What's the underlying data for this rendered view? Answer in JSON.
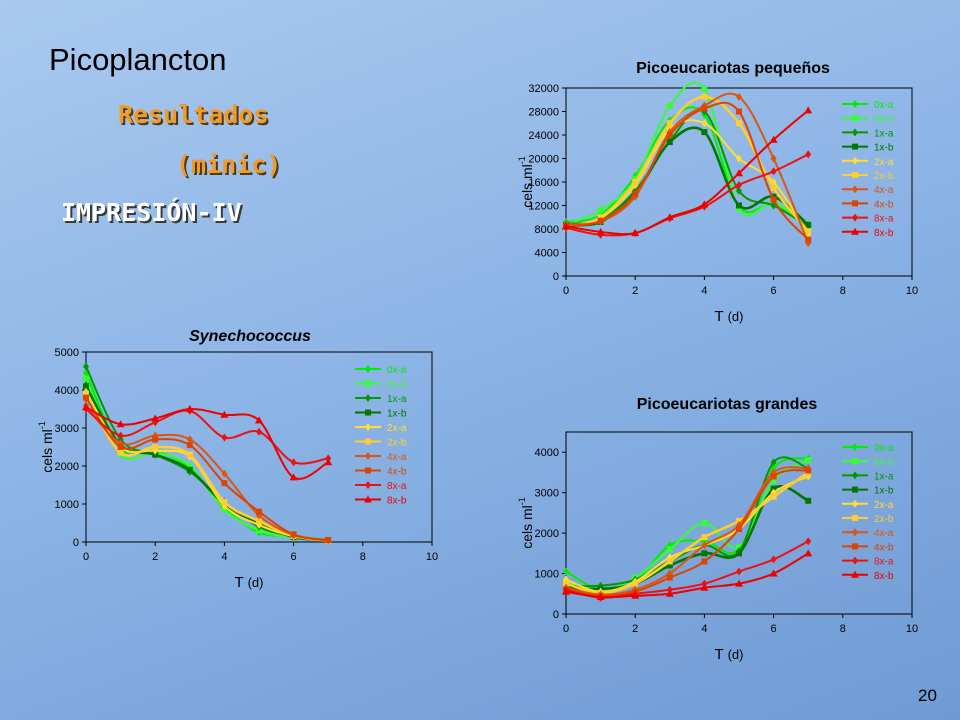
{
  "slide": {
    "title": "Picoplancton",
    "subtitle1": "Resultados",
    "subtitle2": "(minic)",
    "subtitle3": "IMPRESIÓN-IV",
    "page_number": "20"
  },
  "legend_labels": [
    "0x-a",
    "0x-b",
    "1x-a",
    "1x-b",
    "2x-a",
    "2x-b",
    "4x-a",
    "4x-b",
    "8x-a",
    "8x-b"
  ],
  "series_colors": [
    "#00ee00",
    "#33ff33",
    "#009900",
    "#007700",
    "#ffdd33",
    "#ffcc33",
    "#dd5511",
    "#dd4400",
    "#ee1111",
    "#ee0000"
  ],
  "chart_data": [
    {
      "type": "line",
      "title": "Picoeucariotas pequeños",
      "ylabel_main": "cels ml",
      "ylabel_sup": "-1",
      "xlabel_main": "T",
      "xlabel_unit": "(d)",
      "xlim": [
        0,
        10
      ],
      "xticks": [
        "0",
        "2",
        "4",
        "6",
        "8",
        "10"
      ],
      "ylim": [
        0,
        32000
      ],
      "yticks": [
        "0",
        "4000",
        "8000",
        "12000",
        "16000",
        "20000",
        "24000",
        "28000",
        "32000"
      ],
      "x": [
        0,
        1,
        2,
        3,
        4,
        5,
        6,
        7
      ],
      "series": [
        {
          "name": "0x-a",
          "values": [
            9200,
            10400,
            17000,
            26500,
            27500,
            11800,
            12200,
            8800
          ]
        },
        {
          "name": "0x-b",
          "values": [
            8800,
            11200,
            16500,
            29000,
            31800,
            11500,
            12400,
            8600
          ]
        },
        {
          "name": "1x-a",
          "values": [
            8900,
            9600,
            14500,
            23000,
            28000,
            14500,
            12000,
            8500
          ]
        },
        {
          "name": "1x-b",
          "values": [
            8700,
            9200,
            14000,
            22800,
            24500,
            12000,
            13500,
            8700
          ]
        },
        {
          "name": "2x-a",
          "values": [
            8600,
            9800,
            15500,
            25000,
            26000,
            20000,
            16000,
            7000
          ]
        },
        {
          "name": "2x-b",
          "values": [
            8300,
            10000,
            16000,
            26000,
            30500,
            26000,
            15000,
            7600
          ]
        },
        {
          "name": "4x-a",
          "values": [
            8800,
            9300,
            13500,
            24500,
            29000,
            30500,
            20000,
            5600
          ]
        },
        {
          "name": "4x-b",
          "values": [
            8400,
            9400,
            14000,
            24000,
            28500,
            28000,
            13000,
            6200
          ]
        },
        {
          "name": "8x-a",
          "values": [
            8200,
            7000,
            7300,
            9800,
            11800,
            15500,
            17800,
            20700
          ]
        },
        {
          "name": "8x-b",
          "values": [
            8500,
            7500,
            7300,
            10000,
            12200,
            17500,
            23200,
            28200
          ]
        }
      ]
    },
    {
      "type": "line",
      "title": "Synechococcus",
      "ylabel_main": "cels ml",
      "ylabel_sup": "-1",
      "xlabel_main": "T",
      "xlabel_unit": "(d)",
      "xlim": [
        0,
        10
      ],
      "xticks": [
        "0",
        "2",
        "4",
        "6",
        "8",
        "10"
      ],
      "ylim": [
        0,
        5000
      ],
      "yticks": [
        "0",
        "1000",
        "2000",
        "3000",
        "4000",
        "5000"
      ],
      "x": [
        0,
        1,
        2,
        3,
        4,
        5,
        6,
        7
      ],
      "series": [
        {
          "name": "0x-a",
          "values": [
            4450,
            2450,
            2400,
            1950,
            900,
            250,
            150,
            50
          ]
        },
        {
          "name": "0x-b",
          "values": [
            4300,
            2300,
            2350,
            2000,
            850,
            300,
            120,
            40
          ]
        },
        {
          "name": "1x-a",
          "values": [
            4620,
            2700,
            2300,
            1850,
            1050,
            400,
            150,
            30
          ]
        },
        {
          "name": "1x-b",
          "values": [
            4100,
            2550,
            2300,
            1900,
            1000,
            500,
            130,
            50
          ]
        },
        {
          "name": "2x-a",
          "values": [
            3950,
            2500,
            2400,
            2250,
            950,
            450,
            150,
            40
          ]
        },
        {
          "name": "2x-b",
          "values": [
            3900,
            2350,
            2500,
            2300,
            1050,
            550,
            160,
            30
          ]
        },
        {
          "name": "4x-a",
          "values": [
            3600,
            2600,
            2800,
            2700,
            1800,
            700,
            180,
            40
          ]
        },
        {
          "name": "4x-b",
          "values": [
            3800,
            2500,
            2700,
            2550,
            1550,
            800,
            200,
            50
          ]
        },
        {
          "name": "8x-a",
          "values": [
            3500,
            2800,
            3150,
            3450,
            2750,
            2900,
            2100,
            2200
          ]
        },
        {
          "name": "8x-b",
          "values": [
            3550,
            3100,
            3250,
            3500,
            3350,
            3200,
            1700,
            2100
          ]
        }
      ]
    },
    {
      "type": "line",
      "title": "Picoeucariotas grandes",
      "ylabel_main": "cels ml",
      "ylabel_sup": "-1",
      "xlabel_main": "T",
      "xlabel_unit": "(d)",
      "xlim": [
        0,
        10
      ],
      "xticks": [
        "0",
        "2",
        "4",
        "6",
        "8",
        "10"
      ],
      "ylim": [
        0,
        4500
      ],
      "yticks": [
        "0",
        "1000",
        "2000",
        "3000",
        "4000"
      ],
      "x": [
        0,
        1,
        2,
        3,
        4,
        5,
        6,
        7
      ],
      "series": [
        {
          "name": "0x-a",
          "values": [
            1050,
            600,
            800,
            1700,
            1800,
            1600,
            3600,
            3850
          ]
        },
        {
          "name": "0x-b",
          "values": [
            800,
            580,
            900,
            1600,
            2250,
            1650,
            3300,
            3800
          ]
        },
        {
          "name": "1x-a",
          "values": [
            700,
            700,
            850,
            1300,
            1700,
            1550,
            3750,
            3600
          ]
        },
        {
          "name": "1x-b",
          "values": [
            650,
            620,
            750,
            1200,
            1500,
            1500,
            3100,
            2800
          ]
        },
        {
          "name": "2x-a",
          "values": [
            850,
            550,
            800,
            1400,
            1700,
            2100,
            3000,
            3400
          ]
        },
        {
          "name": "2x-b",
          "values": [
            750,
            520,
            750,
            1300,
            1900,
            2300,
            2900,
            3500
          ]
        },
        {
          "name": "4x-a",
          "values": [
            650,
            480,
            600,
            1000,
            1700,
            2200,
            3500,
            3600
          ]
        },
        {
          "name": "4x-b",
          "values": [
            600,
            450,
            550,
            900,
            1300,
            2100,
            3400,
            3550
          ]
        },
        {
          "name": "8x-a",
          "values": [
            600,
            400,
            500,
            600,
            750,
            1050,
            1350,
            1800
          ]
        },
        {
          "name": "8x-b",
          "values": [
            550,
            420,
            450,
            500,
            650,
            750,
            1000,
            1500
          ]
        }
      ]
    }
  ]
}
